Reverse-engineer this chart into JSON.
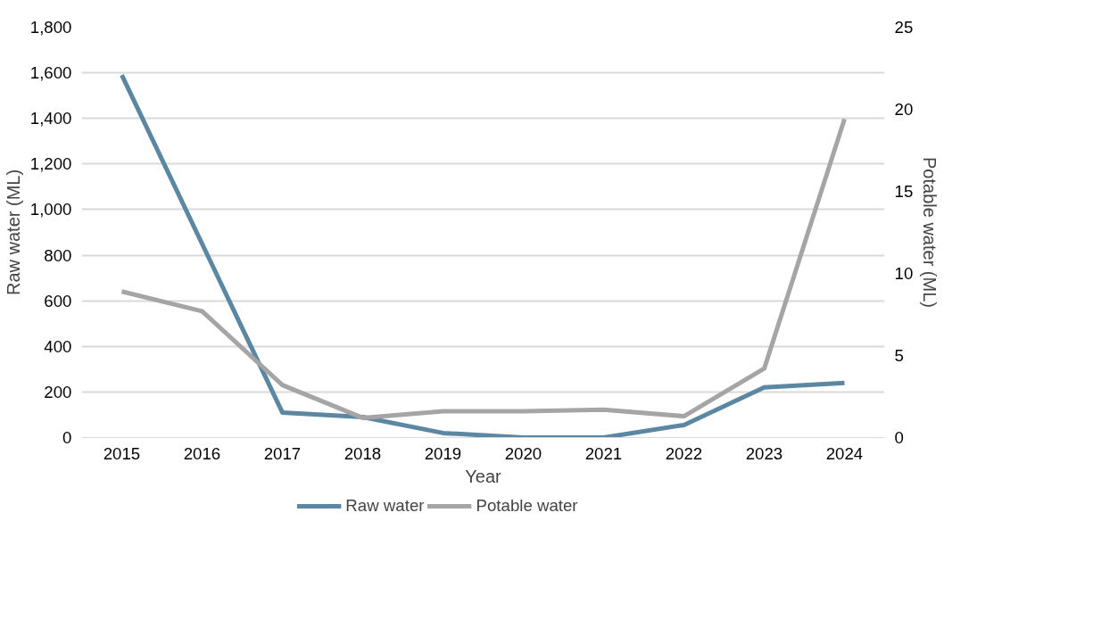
{
  "chart_data": {
    "type": "line",
    "xlabel": "Year",
    "ylabel": "Raw water (ML)",
    "y2label": "Potable water (ML)",
    "categories": [
      "2015",
      "2016",
      "2017",
      "2018",
      "2019",
      "2020",
      "2021",
      "2022",
      "2023",
      "2024"
    ],
    "series": [
      {
        "name": "Raw water",
        "color": "#5b87a3",
        "values": [
          1590,
          850,
          110,
          90,
          20,
          0,
          0,
          55,
          220,
          240
        ]
      },
      {
        "name": "Potable water",
        "color": "#a5a5a5",
        "axis": "y2",
        "values": [
          8.9,
          7.7,
          3.2,
          1.2,
          1.6,
          1.6,
          1.7,
          1.3,
          4.2,
          19.4
        ]
      }
    ],
    "ylim": [
      0,
      1800
    ],
    "yticks": [
      0,
      {
        "value": 200,
        "label": "200"
      },
      {
        "value": 400,
        "label": "400"
      },
      {
        "value": 600,
        "label": "600"
      },
      {
        "value": 800,
        "label": "800"
      },
      {
        "value": 1000,
        "label": "1,000"
      },
      {
        "value": 1200,
        "label": "1,200"
      },
      {
        "value": 1400,
        "label": "1,400"
      },
      {
        "value": 1600,
        "label": "1,600"
      },
      {
        "value": 1800,
        "label": "1,800"
      }
    ],
    "y2lim": [
      0,
      25
    ],
    "y2ticks": [
      0,
      5,
      10,
      15,
      20,
      25
    ],
    "grid": "y",
    "legend": "bottom",
    "marker": "none",
    "line_style": "solid"
  }
}
